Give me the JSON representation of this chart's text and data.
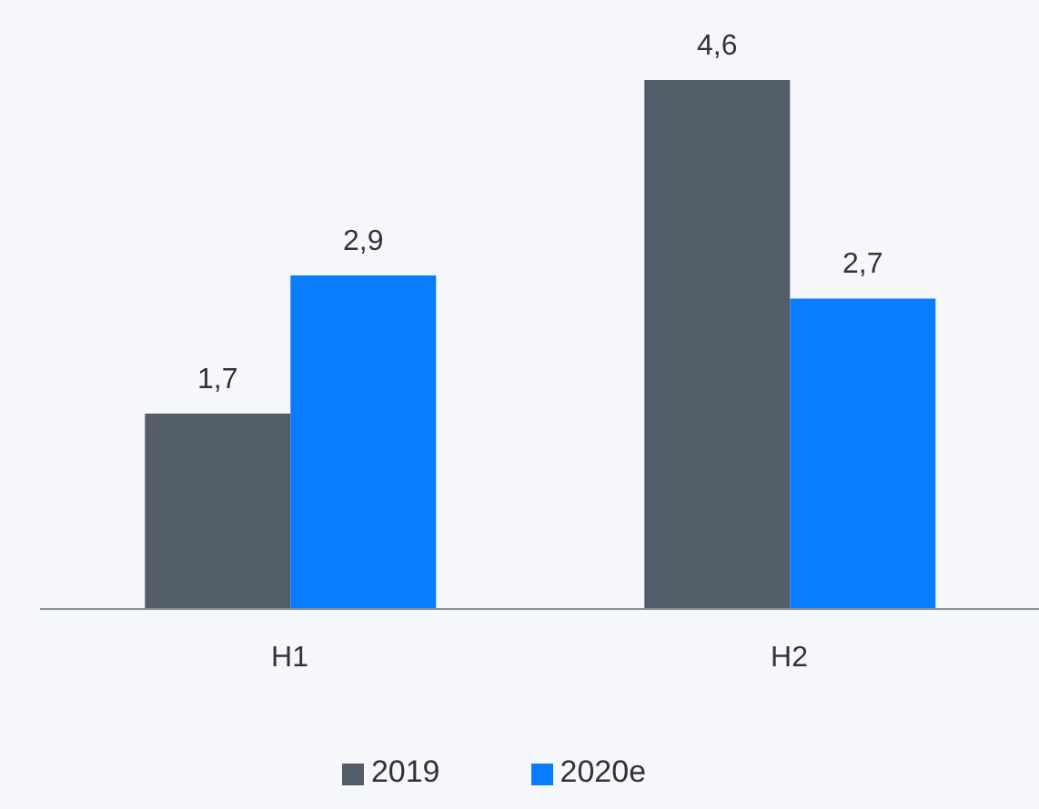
{
  "chart_data": {
    "type": "bar",
    "categories": [
      "H1",
      "H2"
    ],
    "series": [
      {
        "name": "2019",
        "color": "#535c69",
        "values": [
          1.7,
          4.6
        ],
        "value_labels": [
          "1,7",
          "4,6"
        ]
      },
      {
        "name": "2020e",
        "color": "#0a7cff",
        "values": [
          2.9,
          2.7
        ],
        "value_labels": [
          "2,9",
          "2,7"
        ]
      }
    ],
    "legend": "bottom",
    "grid": false
  }
}
